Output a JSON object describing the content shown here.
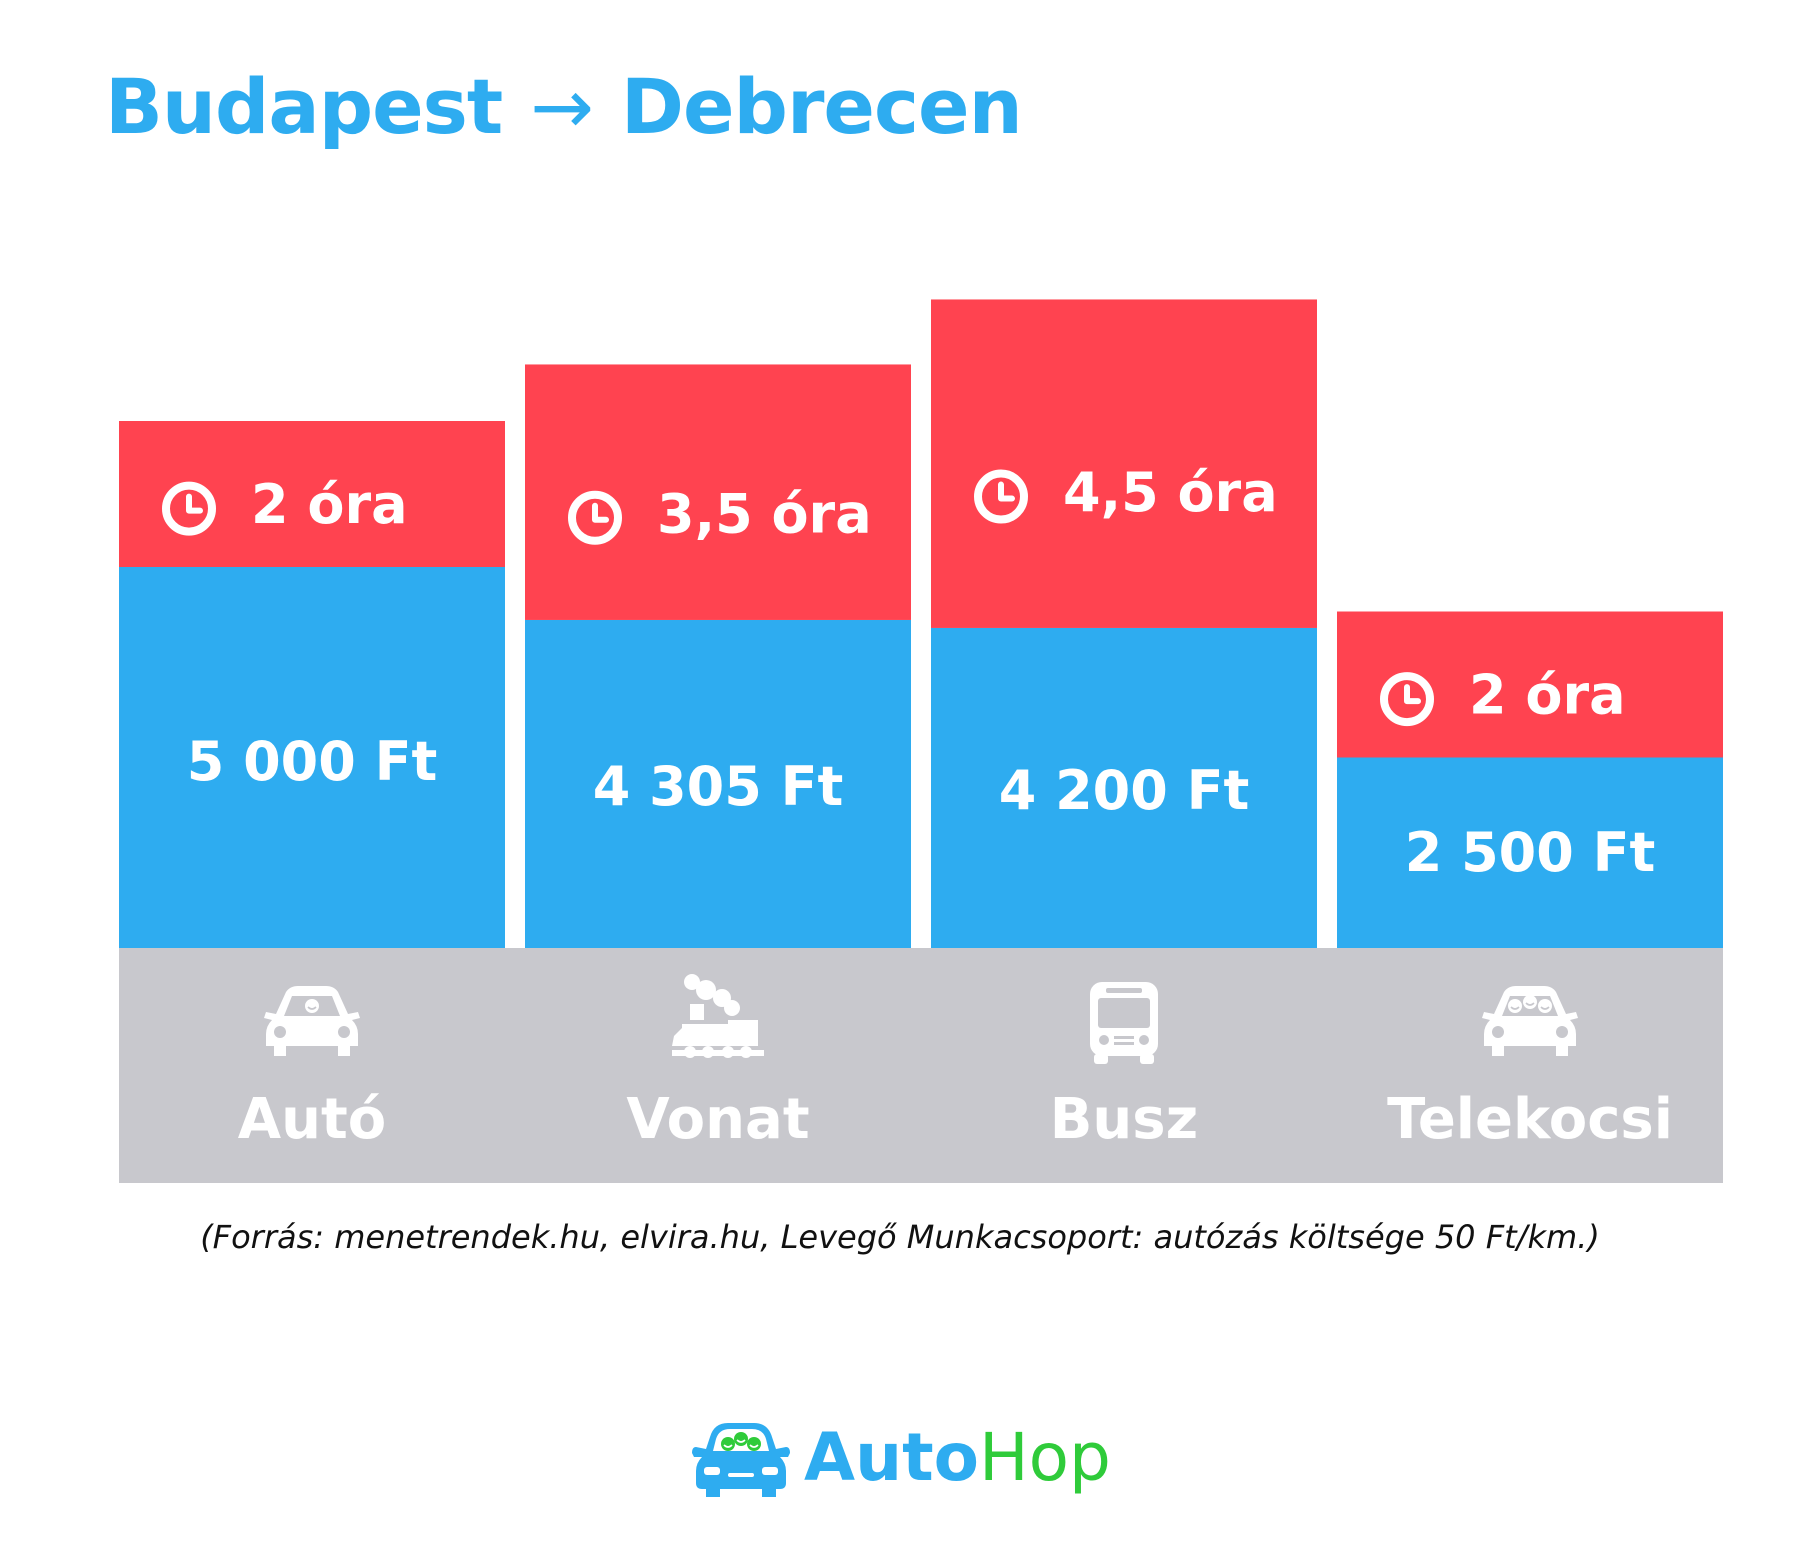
{
  "title": {
    "from": "Budapest",
    "arrow": "→",
    "to": "Debrecen"
  },
  "chart_data": {
    "type": "bar",
    "stacked": true,
    "categories": [
      "Autó",
      "Vonat",
      "Busz",
      "Telekocsi"
    ],
    "icons": [
      "car-icon",
      "train-icon",
      "bus-icon",
      "carpool-icon"
    ],
    "series": [
      {
        "values": [
          5000,
          4305,
          4200,
          2500
        ],
        "labels": [
          "5 000 Ft",
          "4 305 Ft",
          "4 200 Ft",
          "2 500 Ft"
        ],
        "color": "#2eacf0"
      },
      {
        "values": [
          2,
          3.5,
          4.5,
          2
        ],
        "labels": [
          "2 óra",
          "3,5 óra",
          "4,5 óra",
          "2 óra"
        ],
        "color": "#ff4350"
      }
    ],
    "legend": "none",
    "grid": false
  },
  "colors": {
    "accent": "#2eacf0",
    "time": "#ff4350",
    "base": "#c8c8cd",
    "logo_green": "#2fcb3a"
  },
  "source_note": "(Forrás: menetrendek.hu, elvira.hu, Levegő Munkacsoport: autózás költsége 50 Ft/km.)",
  "logo": {
    "part1": "Auto",
    "part2": "Hop"
  }
}
